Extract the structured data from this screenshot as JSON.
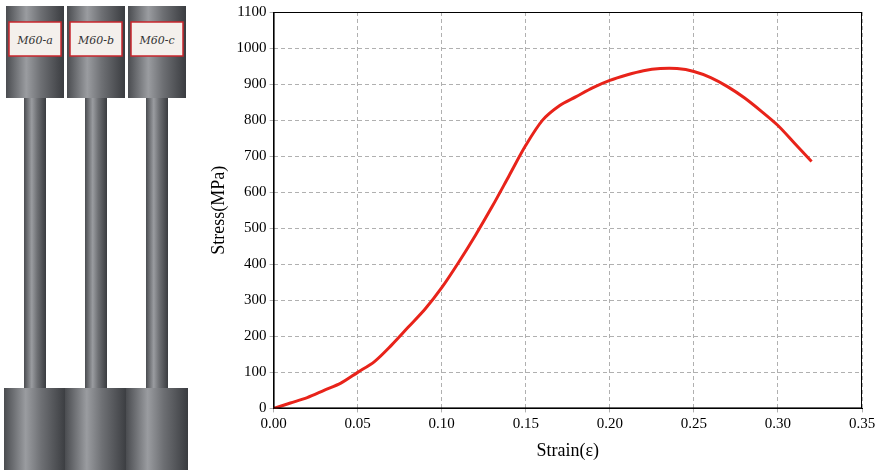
{
  "chart_data": {
    "type": "line",
    "xlabel": "Strain(ε)",
    "ylabel": "Stress(MPa)",
    "x": [
      0.0,
      0.01,
      0.02,
      0.03,
      0.04,
      0.05,
      0.06,
      0.07,
      0.08,
      0.09,
      0.1,
      0.11,
      0.12,
      0.13,
      0.14,
      0.15,
      0.16,
      0.17,
      0.18,
      0.19,
      0.2,
      0.21,
      0.22,
      0.23,
      0.24,
      0.25,
      0.26,
      0.27,
      0.28,
      0.29,
      0.3,
      0.31,
      0.32
    ],
    "values": [
      0,
      15,
      30,
      50,
      70,
      100,
      130,
      175,
      225,
      275,
      335,
      405,
      480,
      560,
      645,
      730,
      800,
      840,
      865,
      890,
      910,
      925,
      937,
      943,
      943,
      935,
      918,
      893,
      862,
      825,
      785,
      735,
      685
    ],
    "color": "#e8231a",
    "marker": "none",
    "line_style": "solid",
    "xlim": [
      0,
      0.35
    ],
    "xticks": [
      {
        "value": 0,
        "label": "0.00"
      },
      {
        "value": 0.05,
        "label": "0.05"
      },
      {
        "value": 0.1,
        "label": "0.10"
      },
      {
        "value": 0.15,
        "label": "0.15"
      },
      {
        "value": 0.2,
        "label": "0.20"
      },
      {
        "value": 0.25,
        "label": "0.25"
      },
      {
        "value": 0.3,
        "label": "0.30"
      },
      {
        "value": 0.35,
        "label": "0.35"
      }
    ],
    "ylim": [
      0,
      1100
    ],
    "yticks": [
      0,
      100,
      200,
      300,
      400,
      500,
      600,
      700,
      800,
      900,
      1000,
      1100
    ],
    "grid": true
  },
  "photo": {
    "labels": [
      "M60-a",
      "M60-b",
      "M60-c"
    ]
  }
}
